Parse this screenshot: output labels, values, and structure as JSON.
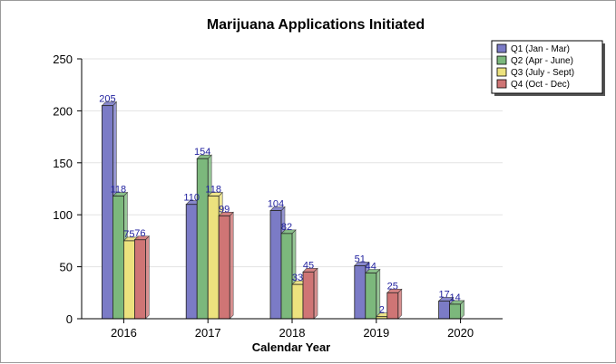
{
  "chart_data": {
    "type": "bar",
    "title": "Marijuana Applications Initiated",
    "xlabel": "Calendar Year",
    "ylabel": "",
    "ylim": [
      0,
      250
    ],
    "yticks": [
      0,
      50,
      100,
      150,
      200,
      250
    ],
    "categories": [
      "2016",
      "2017",
      "2018",
      "2019",
      "2020"
    ],
    "grid": true,
    "legend_position": "top-right",
    "series": [
      {
        "name": "Q1 (Jan - Mar)",
        "color": "#7b7bc6",
        "values": [
          205,
          110,
          104,
          51,
          17
        ],
        "labels": [
          "205",
          "110",
          "104",
          "51",
          "17"
        ]
      },
      {
        "name": "Q2 (Apr - June)",
        "color": "#7cb87c",
        "values": [
          118,
          154,
          82,
          44,
          14
        ],
        "labels": [
          "118",
          "154",
          "82",
          "44",
          "14"
        ]
      },
      {
        "name": "Q3 (July - Sept)",
        "color": "#ece27e",
        "values": [
          75,
          118,
          33,
          2,
          null
        ],
        "labels": [
          "75",
          "118",
          "33",
          "2",
          ""
        ]
      },
      {
        "name": "Q4 (Oct - Dec)",
        "color": "#cf7575",
        "values": [
          76,
          99,
          45,
          25,
          null
        ],
        "labels": [
          "76",
          "99",
          "45",
          "25",
          ""
        ]
      }
    ]
  }
}
